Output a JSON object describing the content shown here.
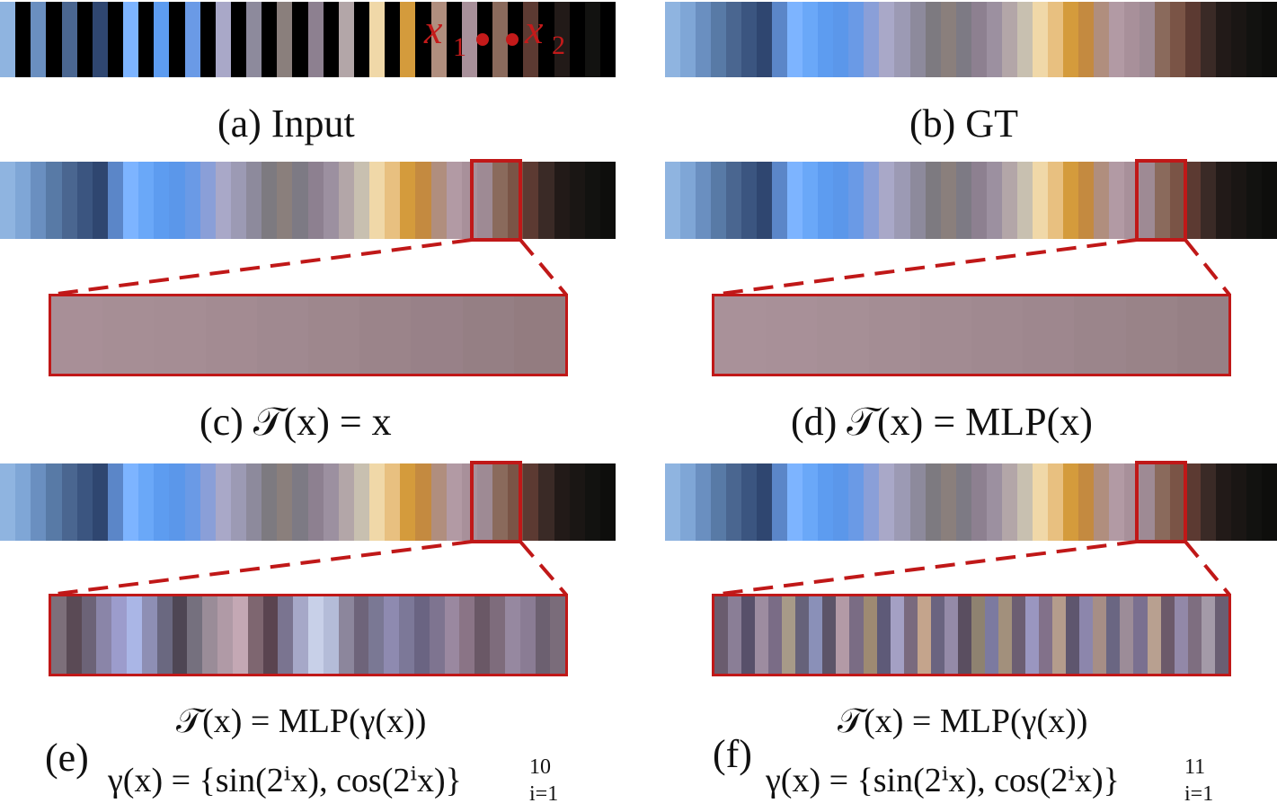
{
  "colors": {
    "accent_red": "#c01818",
    "gt_palette": [
      "#8fb4e0",
      "#7fa6d6",
      "#6a8fc0",
      "#587aa6",
      "#4a6690",
      "#3b5580",
      "#2f4670",
      "#5b86c8",
      "#7db4ff",
      "#6aa8f8",
      "#5d9cf0",
      "#5b97ea",
      "#6a9ae6",
      "#8a9fd8",
      "#a9a8c8",
      "#9c9ab4",
      "#8d8a9c",
      "#7d7a80",
      "#8a7f7c",
      "#7d7a84",
      "#8d8090",
      "#9c90a0",
      "#b3a6a8",
      "#c8c0b0",
      "#f0d8a8",
      "#e8c080",
      "#d49b3c",
      "#c48a40",
      "#b08e7e",
      "#b29aa4",
      "#a8909a",
      "#9e8a94",
      "#8a6a5c",
      "#7a5446",
      "#5c3a32",
      "#3a2a26",
      "#221a18",
      "#1a1614",
      "#121210",
      "#0e0e0c"
    ],
    "zoom_smooth_c": [
      "#a88f97",
      "#a68e95",
      "#a58d94",
      "#a38b92",
      "#a08990",
      "#9e878d",
      "#9b848a",
      "#988188",
      "#957f84",
      "#937c80"
    ],
    "zoom_smooth_d": [
      "#a99199",
      "#a89098",
      "#a68f96",
      "#a48d94",
      "#a28b92",
      "#a08990",
      "#9e878e",
      "#9b858b",
      "#998388",
      "#968085"
    ],
    "zoom_noisy_e": [
      "#7d6f7a",
      "#5a4a55",
      "#6c6377",
      "#8a85a8",
      "#9c9ccc",
      "#aab6e6",
      "#8e8fb4",
      "#6a6880",
      "#4e4654",
      "#75707e",
      "#9a8c98",
      "#b09aa6",
      "#c4a8b4",
      "#7e6670",
      "#5a4450",
      "#7a7490",
      "#a6a8c8",
      "#c8d0e8",
      "#b4bcd8",
      "#8c869c",
      "#6e647a",
      "#7a7894",
      "#8e8ab0",
      "#7c7898",
      "#6a6482",
      "#7e7490",
      "#9a88a0",
      "#8a7486",
      "#6a5866",
      "#7e6c7c",
      "#9688a0",
      "#8a7c94",
      "#6c6070",
      "#7a6c7a"
    ],
    "zoom_noisy_f": [
      "#6a5c6e",
      "#8a7e96",
      "#58506a",
      "#9d8ca0",
      "#7a6c86",
      "#a79a88",
      "#66627a",
      "#8a90b8",
      "#5c5468",
      "#b39aa6",
      "#7a6c84",
      "#9e8a72",
      "#5e5a78",
      "#a4a0c4",
      "#7a6a7e",
      "#c4a48c",
      "#6a6480",
      "#948aa8",
      "#5a4e60",
      "#8e8270",
      "#7c7aa0",
      "#a2907c",
      "#6c5e72",
      "#9a96c0",
      "#82718a",
      "#b49c8c",
      "#5e566e",
      "#8c86ac",
      "#a68e86",
      "#6a6682",
      "#9c8c98",
      "#7a7090",
      "#b8a090",
      "#6c5a6a",
      "#9288a8",
      "#7e6e80",
      "#a49aa8",
      "#6a5e72"
    ]
  },
  "markers": {
    "x1_label": "x",
    "x1_subscript": "1",
    "x2_label": "x",
    "x2_subscript": "2"
  },
  "captions": {
    "a": "(a) Input",
    "b": "(b) GT",
    "c": "(c) 𝒯(x) = x",
    "d": "(d) 𝒯(x) = MLP(x)",
    "e_label": "(e)",
    "e_formula_1": "𝒯(x) = MLP(γ(x))",
    "e_formula_2": "γ(x) = {sin(2ⁱx), cos(2ⁱx)}",
    "e_formula_sup": "10",
    "e_formula_sub": "i=1",
    "f_label": "(f)",
    "f_formula_1": "𝒯(x) = MLP(γ(x))",
    "f_formula_2": "γ(x) = {sin(2ⁱx), cos(2ⁱx)}",
    "f_formula_sup": "11",
    "f_formula_sub": "i=1"
  }
}
